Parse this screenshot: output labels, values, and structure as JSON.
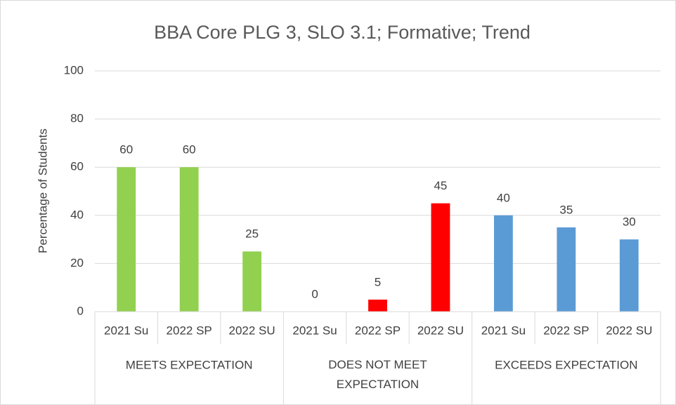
{
  "chart_data": {
    "type": "bar",
    "title": "BBA Core PLG 3, SLO 3.1; Formative; Trend",
    "y_label": "Percentage of Students",
    "groups": [
      {
        "name": "MEETS EXPECTATION",
        "color": "#92d050",
        "categories": [
          "2021 Su",
          "2022 SP",
          "2022 SU"
        ],
        "values": [
          60,
          60,
          25
        ]
      },
      {
        "name": "DOES NOT MEET EXPECTATION",
        "color": "#ff0000",
        "categories": [
          "2021 Su",
          "2022 SP",
          "2022 SU"
        ],
        "values": [
          0,
          5,
          45
        ]
      },
      {
        "name": "EXCEEDS EXPECTATION",
        "color": "#5b9bd5",
        "categories": [
          "2021 Su",
          "2022 SP",
          "2022 SU"
        ],
        "values": [
          40,
          35,
          30
        ]
      }
    ],
    "ylim": [
      0,
      100
    ],
    "yticks": [
      0,
      20,
      40,
      60,
      80,
      100
    ],
    "grid": true
  }
}
